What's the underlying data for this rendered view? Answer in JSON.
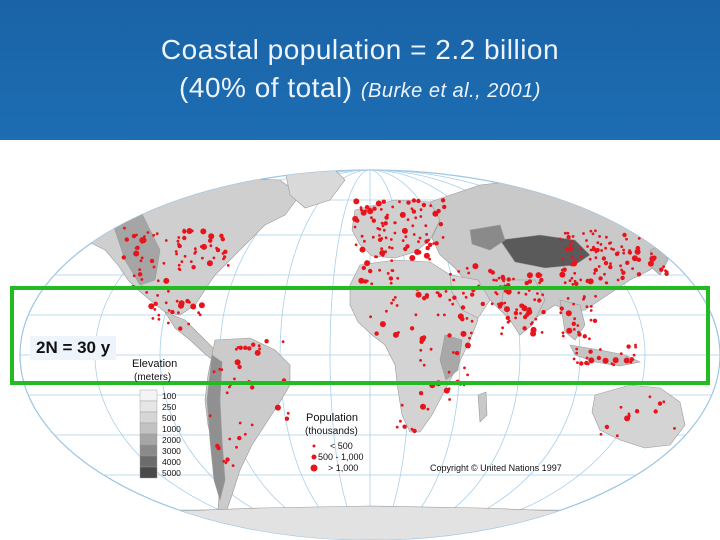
{
  "slide": {
    "title_line1": "Coastal population = 2.2 billion",
    "title_line2_main": "(40% of total)",
    "title_line2_citation": "(Burke et al., 2001)"
  },
  "band": {
    "label": "2N = 30 y",
    "color": "#22bb22"
  },
  "elevation_legend": {
    "title_line1": "Elevation",
    "title_line2": "(meters)",
    "levels": [
      {
        "label": "100",
        "color": "#f4f4f4"
      },
      {
        "label": "250",
        "color": "#e6e6e6"
      },
      {
        "label": "500",
        "color": "#d6d6d6"
      },
      {
        "label": "1000",
        "color": "#c2c2c2"
      },
      {
        "label": "2000",
        "color": "#a6a6a6"
      },
      {
        "label": "3000",
        "color": "#8a8a8a"
      },
      {
        "label": "4000",
        "color": "#6c6c6c"
      },
      {
        "label": "5000",
        "color": "#4a4a4a"
      }
    ]
  },
  "population_legend": {
    "title_line1": "Population",
    "title_line2": "(thousands)",
    "classes": [
      {
        "label": "< 500",
        "symbol": "small-dot"
      },
      {
        "label": "500 - 1,000",
        "symbol": "medium-dot"
      },
      {
        "label": "> 1,000",
        "symbol": "large-dot"
      }
    ],
    "dot_color": "#e8141c"
  },
  "copyright": "Copyright © United Nations 1997",
  "colors": {
    "header_bg": "#1a63a6",
    "ocean": "#ffffff",
    "land_light": "#d8d8d8",
    "land_dark": "#8c8c8c",
    "graticule": "#9cc6e4"
  }
}
